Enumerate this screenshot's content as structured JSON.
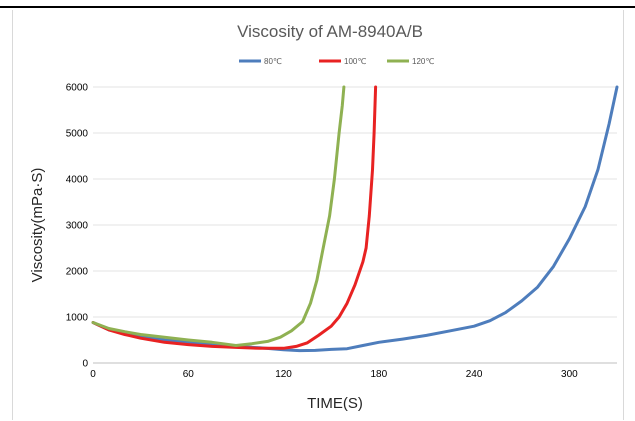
{
  "chart_data": {
    "type": "line",
    "title": "Viscosity of AM-8940A/B",
    "xlabel": "TIME(S)",
    "ylabel": "Viscosity(mPa·S)",
    "xlim": [
      0,
      330
    ],
    "ylim": [
      0,
      6000
    ],
    "x_ticks": [
      0,
      60,
      120,
      180,
      240,
      300
    ],
    "y_ticks": [
      0,
      1000,
      2000,
      3000,
      4000,
      5000,
      6000
    ],
    "grid": "horizontal",
    "legend_position": "top",
    "series": [
      {
        "name": "80℃",
        "color": "#4e7dbc",
        "points": [
          [
            0,
            880
          ],
          [
            10,
            720
          ],
          [
            20,
            650
          ],
          [
            30,
            580
          ],
          [
            45,
            500
          ],
          [
            60,
            450
          ],
          [
            75,
            400
          ],
          [
            90,
            360
          ],
          [
            105,
            330
          ],
          [
            120,
            290
          ],
          [
            130,
            270
          ],
          [
            140,
            275
          ],
          [
            150,
            295
          ],
          [
            160,
            310
          ],
          [
            170,
            380
          ],
          [
            180,
            450
          ],
          [
            195,
            520
          ],
          [
            210,
            600
          ],
          [
            225,
            700
          ],
          [
            240,
            800
          ],
          [
            250,
            920
          ],
          [
            260,
            1100
          ],
          [
            270,
            1350
          ],
          [
            280,
            1650
          ],
          [
            290,
            2100
          ],
          [
            300,
            2700
          ],
          [
            310,
            3400
          ],
          [
            318,
            4200
          ],
          [
            325,
            5200
          ],
          [
            330,
            6000
          ]
        ]
      },
      {
        "name": "100℃",
        "color": "#e82222",
        "points": [
          [
            0,
            880
          ],
          [
            10,
            720
          ],
          [
            20,
            620
          ],
          [
            30,
            540
          ],
          [
            45,
            450
          ],
          [
            60,
            400
          ],
          [
            75,
            360
          ],
          [
            90,
            340
          ],
          [
            105,
            320
          ],
          [
            120,
            320
          ],
          [
            128,
            360
          ],
          [
            135,
            440
          ],
          [
            142,
            600
          ],
          [
            150,
            800
          ],
          [
            155,
            1000
          ],
          [
            160,
            1300
          ],
          [
            165,
            1700
          ],
          [
            170,
            2200
          ],
          [
            172,
            2500
          ],
          [
            174,
            3200
          ],
          [
            176,
            4200
          ],
          [
            177,
            5000
          ],
          [
            178,
            6000
          ]
        ]
      },
      {
        "name": "120℃",
        "color": "#8fb152",
        "points": [
          [
            0,
            880
          ],
          [
            10,
            750
          ],
          [
            20,
            680
          ],
          [
            30,
            620
          ],
          [
            45,
            560
          ],
          [
            60,
            500
          ],
          [
            75,
            450
          ],
          [
            90,
            380
          ],
          [
            100,
            420
          ],
          [
            110,
            470
          ],
          [
            118,
            560
          ],
          [
            125,
            700
          ],
          [
            132,
            900
          ],
          [
            137,
            1300
          ],
          [
            141,
            1800
          ],
          [
            145,
            2500
          ],
          [
            149,
            3200
          ],
          [
            152,
            4000
          ],
          [
            155,
            5000
          ],
          [
            157,
            5600
          ],
          [
            158,
            6000
          ]
        ]
      }
    ]
  }
}
